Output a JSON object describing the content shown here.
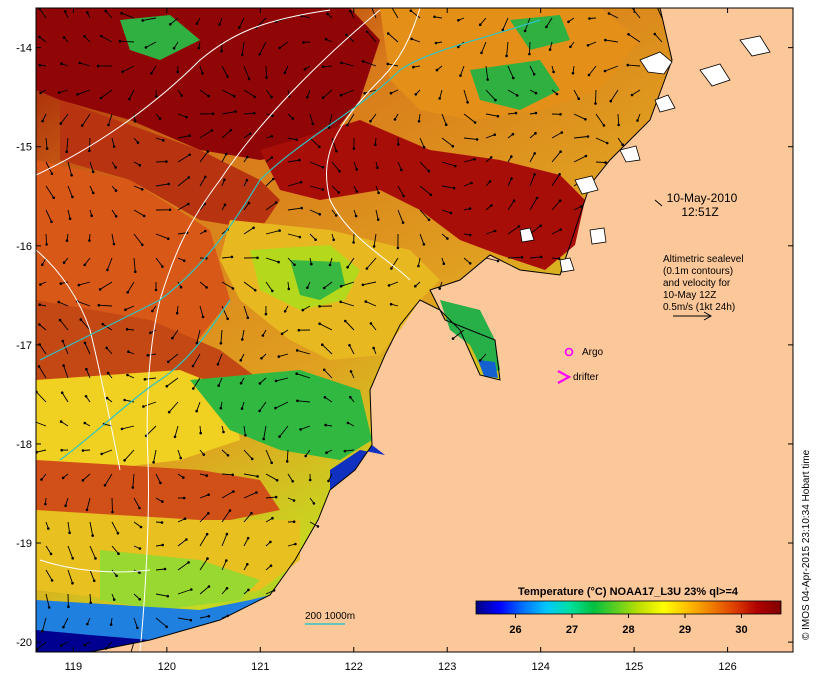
{
  "map": {
    "lon_range": [
      118.6,
      126.7
    ],
    "lat_range": [
      -20.1,
      -13.6
    ],
    "lon_ticks": [
      119,
      120,
      121,
      122,
      123,
      124,
      125,
      126
    ],
    "lat_ticks": [
      -14,
      -15,
      -16,
      -17,
      -18,
      -19,
      -20
    ],
    "lon_tick_labels": [
      "119",
      "120",
      "121",
      "122",
      "123",
      "124",
      "125",
      "126"
    ],
    "lat_tick_labels": [
      "-14",
      "-15",
      "-16",
      "-17",
      "-18",
      "-19",
      "-20"
    ],
    "land_color": "#fcc89a",
    "ocean_fill_color": "#d6811c",
    "date_label": "10-May-2010",
    "time_label": "12:51Z",
    "altimetry_line1": "Altimetric sealevel",
    "altimetry_line2": "(0.1m contours)",
    "altimetry_line3": "and velocity for",
    "altimetry_line4": "10-May 12Z",
    "altimetry_line5": "0.5m/s (1kt 24h)",
    "argo_label": "Argo",
    "drifter_label": "drifter",
    "depth_label": "200  1000m",
    "credit": "© IMOS 04-Apr-2015 23:10:34 Hobart time",
    "argo_color": "#ff00ff",
    "drifter_color": "#ff00ff",
    "contour_color": "#2ec4c4"
  },
  "colorbar": {
    "title": "Temperature (°C) NOAA17_L3U 23% ql>=4",
    "min": 25.3,
    "max": 30.7,
    "ticks": [
      26,
      27,
      28,
      29,
      30
    ],
    "tick_labels": [
      "26",
      "27",
      "28",
      "29",
      "30"
    ],
    "colors": [
      "#000080",
      "#0000ff",
      "#0070ff",
      "#00c8ff",
      "#00e0a0",
      "#00c040",
      "#60d020",
      "#c0e000",
      "#ffff00",
      "#ffc000",
      "#f08000",
      "#e04000",
      "#b00000",
      "#800000"
    ]
  }
}
